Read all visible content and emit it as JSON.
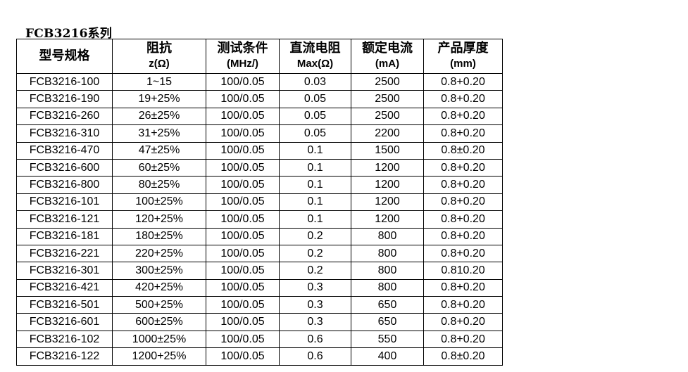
{
  "title": "FCB3216系列",
  "headers": [
    {
      "zh": "型号规格",
      "unit": ""
    },
    {
      "zh": "阻抗",
      "unit": "z(Ω)"
    },
    {
      "zh": "测试条件",
      "unit": "(MHz/)"
    },
    {
      "zh": "直流电阻",
      "unit": "Max(Ω)"
    },
    {
      "zh": "额定电流",
      "unit": "(mA)"
    },
    {
      "zh": "产品厚度",
      "unit": "(mm)"
    }
  ],
  "rows": [
    [
      "FCB3216-100",
      "1~15",
      "100/0.05",
      "0.03",
      "2500",
      "0.8+0.20"
    ],
    [
      "FCB3216-190",
      "19+25%",
      "100/0.05",
      "0.05",
      "2500",
      "0.8+0.20"
    ],
    [
      "FCB3216-260",
      "26±25%",
      "100/0.05",
      "0.05",
      "2500",
      "0.8+0.20"
    ],
    [
      "FCB3216-310",
      "31+25%",
      "100/0.05",
      "0.05",
      "2200",
      "0.8+0.20"
    ],
    [
      "FCB3216-470",
      "47±25%",
      "100/0.05",
      "0.1",
      "1500",
      "0.8±0.20"
    ],
    [
      "FCB3216-600",
      "60±25%",
      "100/0.05",
      "0.1",
      "1200",
      "0.8+0.20"
    ],
    [
      "FCB3216-800",
      "80±25%",
      "100/0.05",
      "0.1",
      "1200",
      "0.8+0.20"
    ],
    [
      "FCB3216-101",
      "100±25%",
      "100/0.05",
      "0.1",
      "1200",
      "0.8+0.20"
    ],
    [
      "FCB3216-121",
      "120+25%",
      "100/0.05",
      "0.1",
      "1200",
      "0.8+0.20"
    ],
    [
      "FCB3216-181",
      "180±25%",
      "100/0.05",
      "0.2",
      "800",
      "0.8+0.20"
    ],
    [
      "FCB3216-221",
      "220+25%",
      "100/0.05",
      "0.2",
      "800",
      "0.8+0.20"
    ],
    [
      "FCB3216-301",
      "300±25%",
      "100/0.05",
      "0.2",
      "800",
      "0.810.20"
    ],
    [
      "FCB3216-421",
      "420+25%",
      "100/0.05",
      "0.3",
      "800",
      "0.8+0.20"
    ],
    [
      "FCB3216-501",
      "500+25%",
      "100/0.05",
      "0.3",
      "650",
      "0.8+0.20"
    ],
    [
      "FCB3216-601",
      "600±25%",
      "100/0.05",
      "0.3",
      "650",
      "0.8+0.20"
    ],
    [
      "FCB3216-102",
      "1000±25%",
      "100/0.05",
      "0.6",
      "550",
      "0.8+0.20"
    ],
    [
      "FCB3216-122",
      "1200+25%",
      "100/0.05",
      "0.6",
      "400",
      "0.8±0.20"
    ]
  ]
}
